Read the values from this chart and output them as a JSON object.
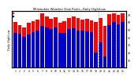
{
  "title": "Milwaukee Weather Dew Point—Daily High/Low",
  "ylim": [
    0,
    75
  ],
  "yticks": [
    10,
    20,
    30,
    40,
    50,
    60,
    70
  ],
  "ytick_labels": [
    "10",
    "20",
    "30",
    "40",
    "50",
    "60",
    "70"
  ],
  "background_color": "#ffffff",
  "plot_bg": "#ffffff",
  "high_color": "#ff0000",
  "low_color": "#0000cc",
  "dashed_lines": [
    18.5,
    22.5
  ],
  "highs": [
    60,
    56,
    53,
    59,
    61,
    63,
    71,
    67,
    64,
    66,
    59,
    61,
    65,
    67,
    65,
    63,
    64,
    62,
    60,
    65,
    55,
    70,
    71,
    69,
    71
  ],
  "lows": [
    46,
    44,
    40,
    43,
    47,
    49,
    55,
    53,
    51,
    53,
    45,
    46,
    51,
    52,
    49,
    49,
    48,
    47,
    20,
    33,
    14,
    56,
    60,
    57,
    60
  ],
  "x_labels": [
    "1",
    "2",
    "3",
    "4",
    "5",
    "6",
    "7",
    "8",
    "9",
    "10",
    "11",
    "12",
    "13",
    "14",
    "15",
    "16",
    "17",
    "18",
    "19",
    "20",
    "21",
    "22",
    "23",
    "24",
    "25"
  ],
  "left_label": "Daily High/Low",
  "bar_width": 0.42
}
